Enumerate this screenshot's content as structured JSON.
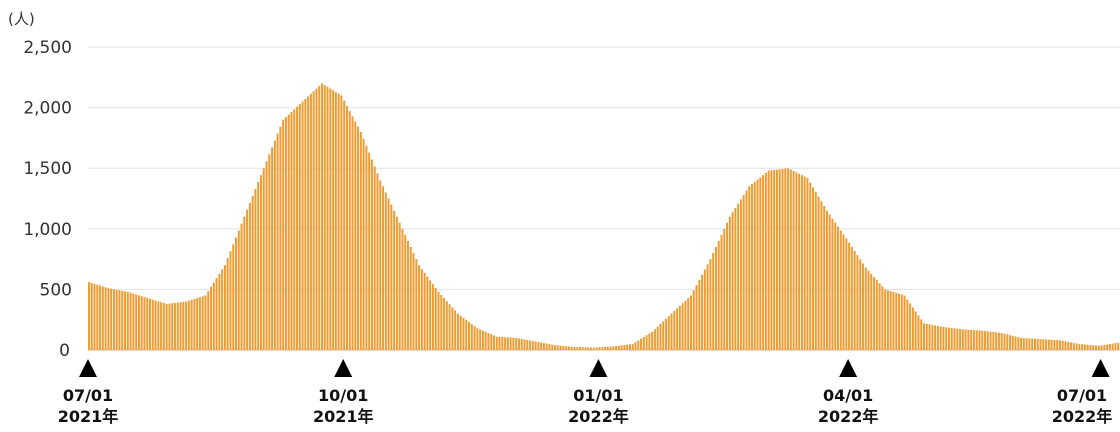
{
  "chart_data": {
    "type": "bar",
    "unit_label": "(人)",
    "color": "#F39A2E",
    "ylim": [
      0,
      2500
    ],
    "yticks": [
      "0",
      "500",
      "1,000",
      "1,500",
      "2,000",
      "2,500"
    ],
    "grid": true,
    "x_markers": [
      {
        "date": "07/01",
        "year": "2021年"
      },
      {
        "date": "10/01",
        "year": "2021年"
      },
      {
        "date": "01/01",
        "year": "2022年"
      },
      {
        "date": "04/01",
        "year": "2022年"
      },
      {
        "date": "07/01",
        "year": "2022年"
      }
    ],
    "x_start": "2021-07-01",
    "x_end": "2022-07-08",
    "series": [
      {
        "values_by_date": [
          [
            "2021-07-01",
            560
          ],
          [
            "2021-07-08",
            510
          ],
          [
            "2021-07-15",
            480
          ],
          [
            "2021-07-22",
            430
          ],
          [
            "2021-07-29",
            380
          ],
          [
            "2021-08-05",
            400
          ],
          [
            "2021-08-12",
            450
          ],
          [
            "2021-08-19",
            700
          ],
          [
            "2021-08-26",
            1100
          ],
          [
            "2021-09-02",
            1500
          ],
          [
            "2021-09-09",
            1900
          ],
          [
            "2021-09-16",
            2050
          ],
          [
            "2021-09-23",
            2200
          ],
          [
            "2021-09-30",
            2100
          ],
          [
            "2021-10-07",
            1800
          ],
          [
            "2021-10-14",
            1400
          ],
          [
            "2021-10-21",
            1050
          ],
          [
            "2021-10-28",
            700
          ],
          [
            "2021-11-04",
            480
          ],
          [
            "2021-11-11",
            300
          ],
          [
            "2021-11-18",
            180
          ],
          [
            "2021-11-25",
            110
          ],
          [
            "2021-12-02",
            100
          ],
          [
            "2021-12-09",
            70
          ],
          [
            "2021-12-16",
            40
          ],
          [
            "2021-12-23",
            25
          ],
          [
            "2021-12-30",
            20
          ],
          [
            "2022-01-06",
            30
          ],
          [
            "2022-01-13",
            50
          ],
          [
            "2022-01-20",
            150
          ],
          [
            "2022-01-27",
            300
          ],
          [
            "2022-02-03",
            450
          ],
          [
            "2022-02-10",
            750
          ],
          [
            "2022-02-17",
            1100
          ],
          [
            "2022-02-24",
            1350
          ],
          [
            "2022-03-03",
            1480
          ],
          [
            "2022-03-10",
            1500
          ],
          [
            "2022-03-17",
            1420
          ],
          [
            "2022-03-24",
            1150
          ],
          [
            "2022-03-31",
            920
          ],
          [
            "2022-04-07",
            680
          ],
          [
            "2022-04-14",
            500
          ],
          [
            "2022-04-21",
            450
          ],
          [
            "2022-04-28",
            220
          ],
          [
            "2022-05-05",
            190
          ],
          [
            "2022-05-12",
            170
          ],
          [
            "2022-05-19",
            160
          ],
          [
            "2022-05-26",
            140
          ],
          [
            "2022-06-02",
            100
          ],
          [
            "2022-06-09",
            90
          ],
          [
            "2022-06-16",
            80
          ],
          [
            "2022-06-23",
            50
          ],
          [
            "2022-06-30",
            35
          ],
          [
            "2022-07-07",
            60
          ]
        ]
      }
    ]
  }
}
